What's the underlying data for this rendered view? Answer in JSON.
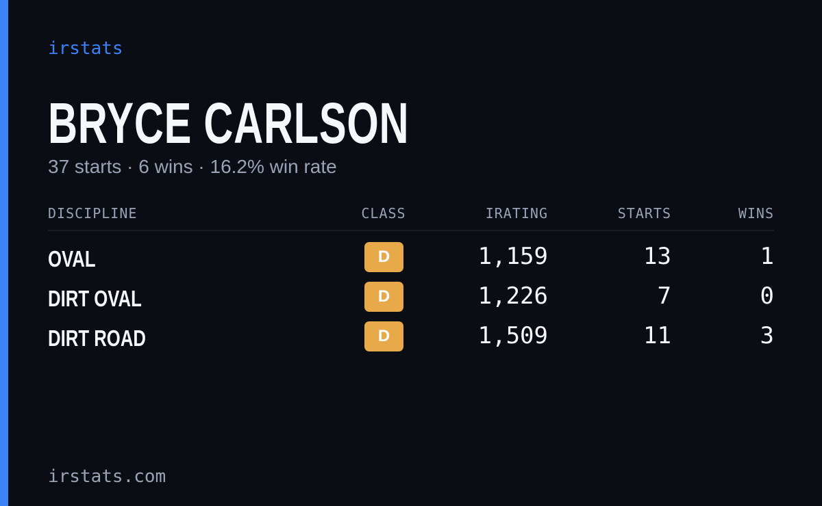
{
  "brand": "irstats",
  "name": "BRYCE CARLSON",
  "summary": "37 starts · 6 wins · 16.2% win rate",
  "table": {
    "headers": [
      "DISCIPLINE",
      "CLASS",
      "IRATING",
      "STARTS",
      "WINS"
    ],
    "rows": [
      [
        "OVAL",
        "D",
        "1,159",
        "13",
        "1"
      ],
      [
        "DIRT OVAL",
        "D",
        "1,226",
        "7",
        "0"
      ],
      [
        "DIRT ROAD",
        "D",
        "1,509",
        "11",
        "3"
      ]
    ]
  },
  "footer": "irstats.com"
}
